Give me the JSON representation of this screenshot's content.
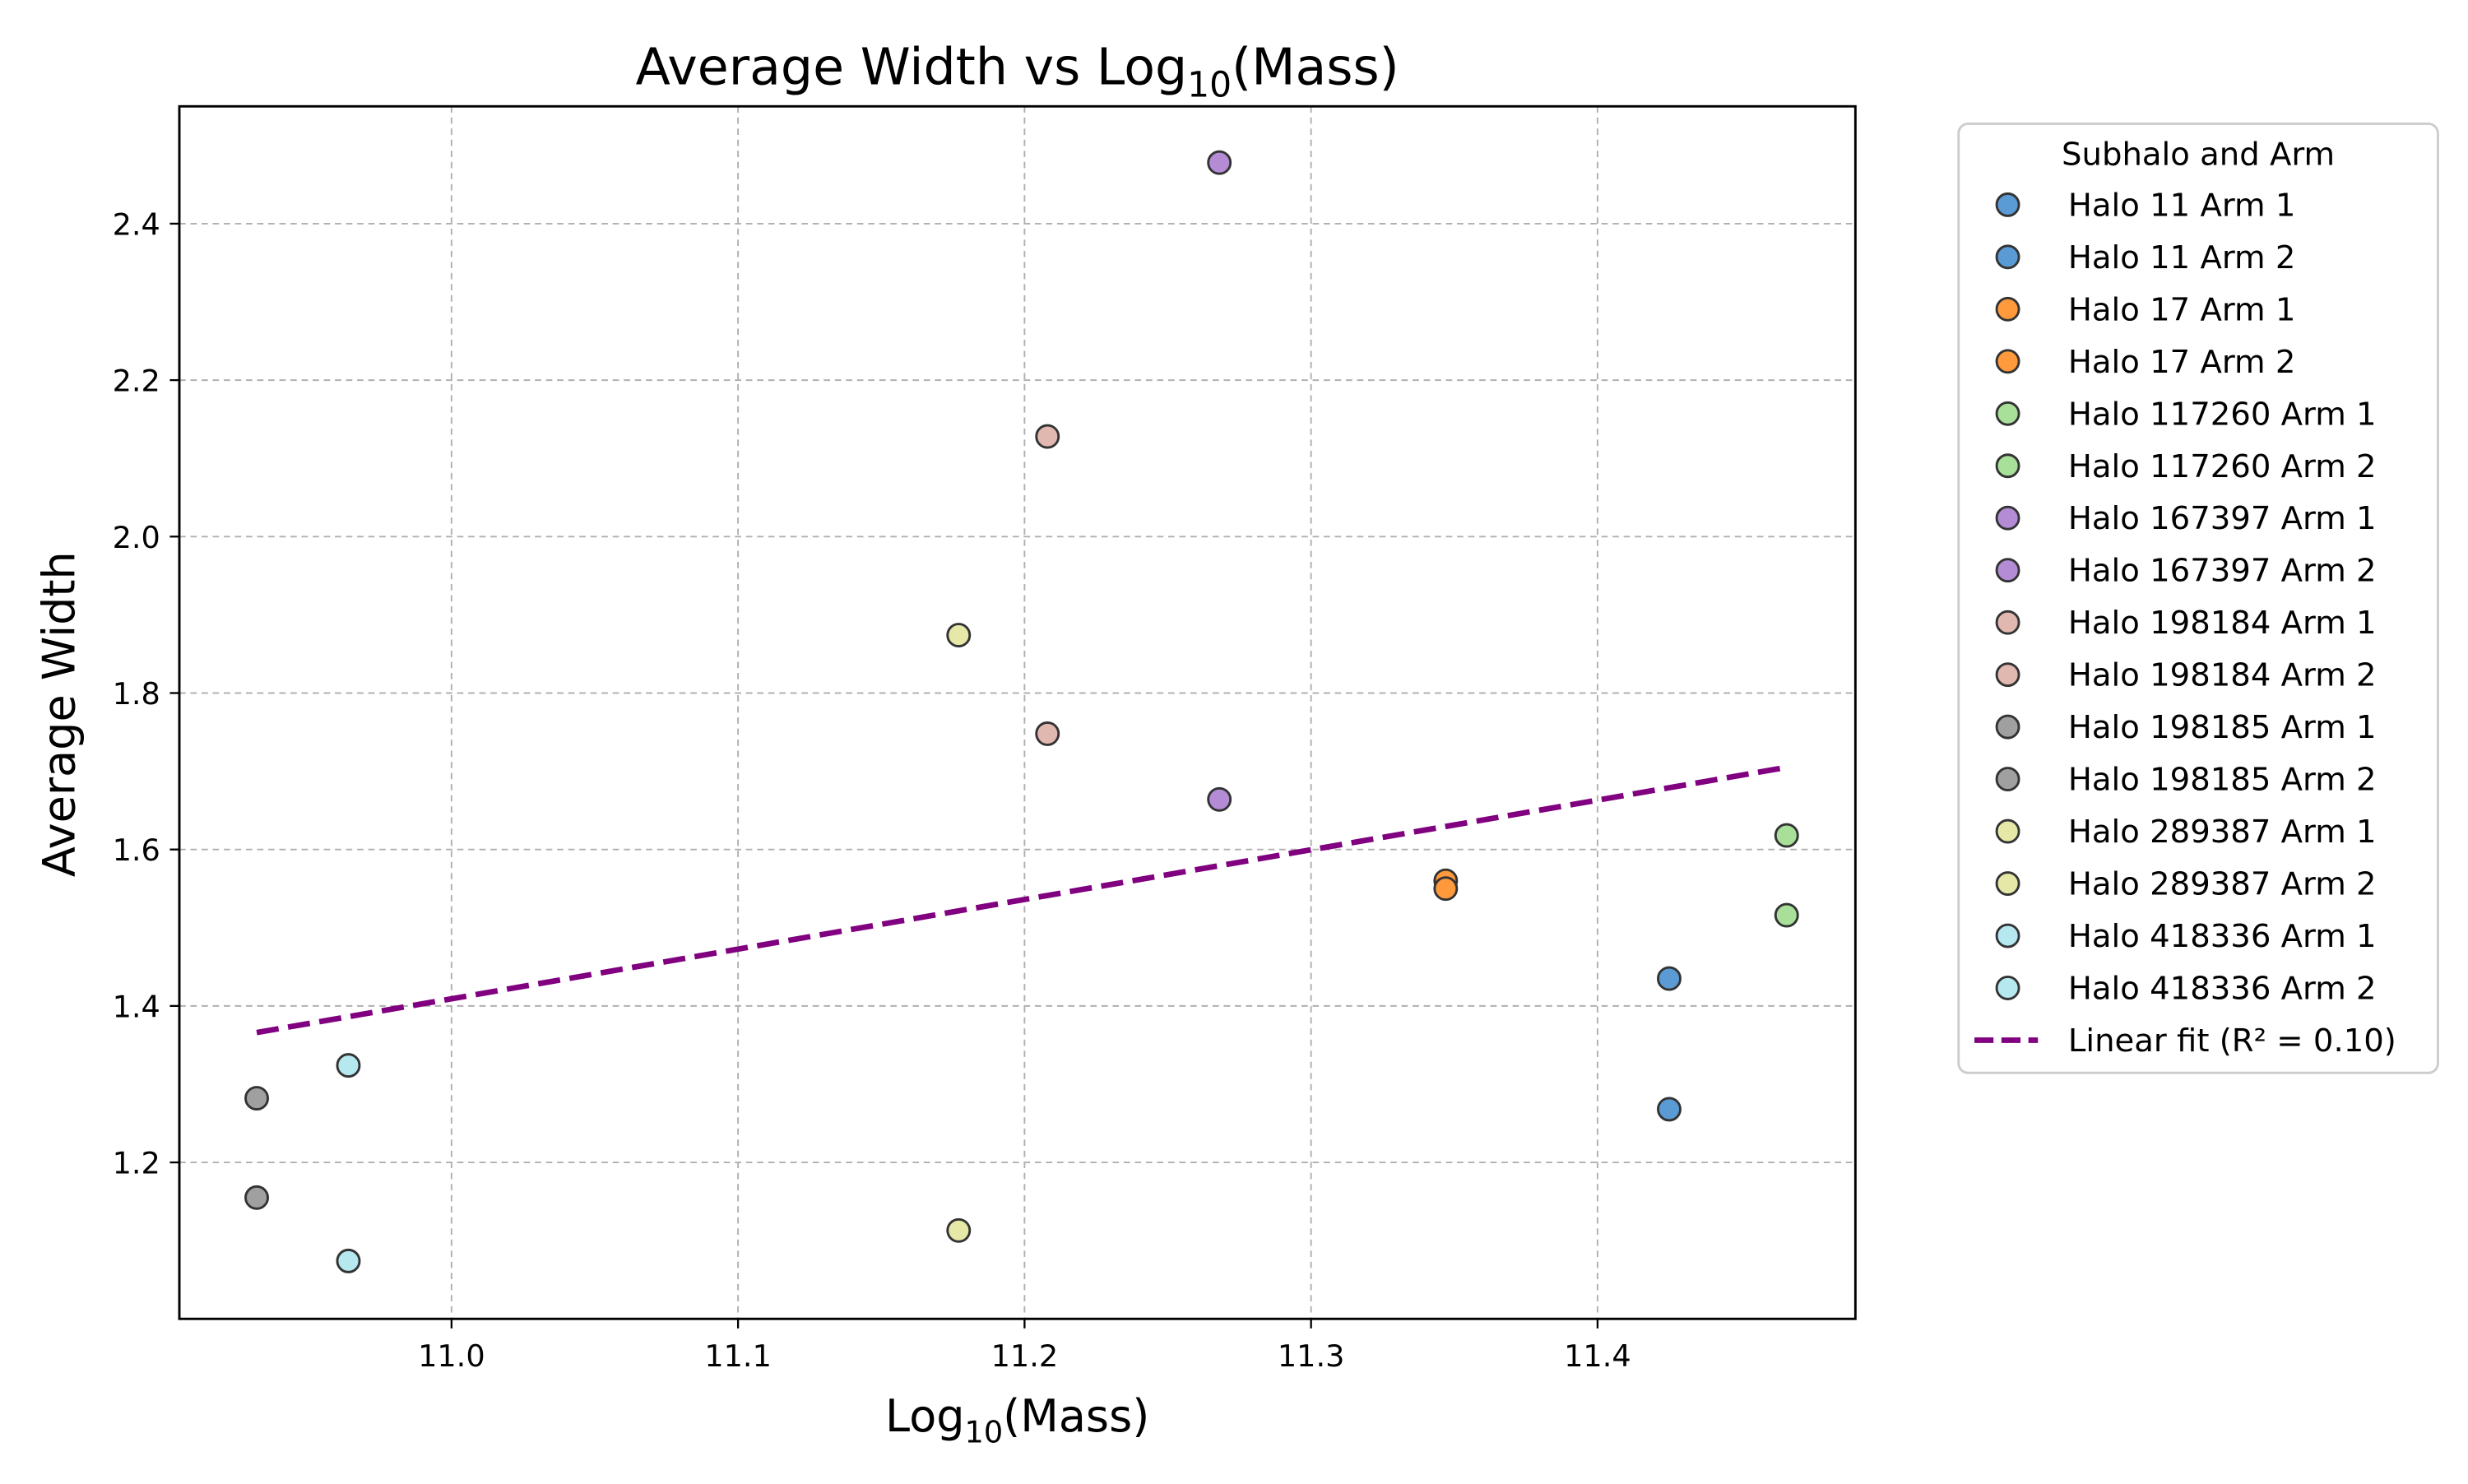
{
  "chart_data": {
    "type": "scatter",
    "title_prefix": "Average Width vs Log",
    "title_sub": "10",
    "title_suffix": "(Mass)",
    "xlabel_prefix": "Log",
    "xlabel_sub": "10",
    "xlabel_suffix": "(Mass)",
    "ylabel": "Average Width",
    "xlim": [
      10.905,
      11.49
    ],
    "ylim": [
      1.0,
      2.55
    ],
    "xticks": [
      11.0,
      11.1,
      11.2,
      11.3,
      11.4
    ],
    "xtick_labels": [
      "11.0",
      "11.1",
      "11.2",
      "11.3",
      "11.4"
    ],
    "yticks": [
      1.2,
      1.4,
      1.6,
      1.8,
      2.0,
      2.2,
      2.4
    ],
    "ytick_labels": [
      "1.2",
      "1.4",
      "1.6",
      "1.8",
      "2.0",
      "2.2",
      "2.4"
    ],
    "grid": true,
    "legend_title": "Subhalo and Arm",
    "legend_placement": "outside right, top",
    "series": [
      {
        "name": "Halo 11 Arm 1",
        "color": "#5b9bd5",
        "x": [
          11.425
        ],
        "y": [
          1.435
        ]
      },
      {
        "name": "Halo 11 Arm 2",
        "color": "#5b9bd5",
        "x": [
          11.425
        ],
        "y": [
          1.268
        ]
      },
      {
        "name": "Halo 17 Arm 1",
        "color": "#ff9a3c",
        "x": [
          11.347
        ],
        "y": [
          1.56
        ]
      },
      {
        "name": "Halo 17 Arm 2",
        "color": "#ff9a3c",
        "x": [
          11.347
        ],
        "y": [
          1.55
        ]
      },
      {
        "name": "Halo 117260 Arm 1",
        "color": "#a8e09a",
        "x": [
          11.466
        ],
        "y": [
          1.618
        ]
      },
      {
        "name": "Halo 117260 Arm 2",
        "color": "#a8e09a",
        "x": [
          11.466
        ],
        "y": [
          1.516
        ]
      },
      {
        "name": "Halo 167397 Arm 1",
        "color": "#b48cd6",
        "x": [
          11.268
        ],
        "y": [
          2.478
        ]
      },
      {
        "name": "Halo 167397 Arm 2",
        "color": "#b48cd6",
        "x": [
          11.268
        ],
        "y": [
          1.664
        ]
      },
      {
        "name": "Halo 198184 Arm 1",
        "color": "#e0b8b0",
        "x": [
          11.208
        ],
        "y": [
          2.128
        ]
      },
      {
        "name": "Halo 198184 Arm 2",
        "color": "#e0b8b0",
        "x": [
          11.208
        ],
        "y": [
          1.748
        ]
      },
      {
        "name": "Halo 198185 Arm 1",
        "color": "#a0a0a0",
        "x": [
          10.932
        ],
        "y": [
          1.282
        ]
      },
      {
        "name": "Halo 198185 Arm 2",
        "color": "#a0a0a0",
        "x": [
          10.932
        ],
        "y": [
          1.155
        ]
      },
      {
        "name": "Halo 289387 Arm 1",
        "color": "#e6e8a8",
        "x": [
          11.177
        ],
        "y": [
          1.874
        ]
      },
      {
        "name": "Halo 289387 Arm 2",
        "color": "#e6e8a8",
        "x": [
          11.177
        ],
        "y": [
          1.113
        ]
      },
      {
        "name": "Halo 418336 Arm 1",
        "color": "#b6e8f0",
        "x": [
          10.964
        ],
        "y": [
          1.324
        ]
      },
      {
        "name": "Halo 418336 Arm 2",
        "color": "#b6e8f0",
        "x": [
          10.964
        ],
        "y": [
          1.074
        ]
      }
    ],
    "fit_line": {
      "label": "Linear fit (R² = 0.10)",
      "color": "#800080",
      "x": [
        10.932,
        11.466
      ],
      "y": [
        1.366,
        1.705
      ]
    }
  }
}
